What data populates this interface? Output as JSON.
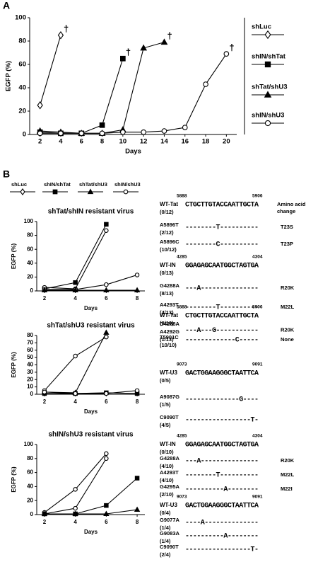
{
  "panel_labels": [
    "A",
    "B"
  ],
  "chart_data": [
    {
      "type": "line",
      "xlabel": "Days",
      "ylabel": "EGFP (%)",
      "x": [
        2,
        4,
        6,
        8,
        10,
        12,
        14,
        16,
        18,
        20
      ],
      "xlim": [
        1,
        21
      ],
      "xticks": [
        2,
        4,
        6,
        8,
        10,
        12,
        14,
        16,
        18,
        20
      ],
      "ylim": [
        0,
        100
      ],
      "yticks": [
        0,
        20,
        40,
        60,
        80,
        100
      ],
      "legend": "right",
      "series": [
        {
          "name": "shLuc",
          "marker": "diamond-open",
          "color": "#000000",
          "end_label": "†",
          "values": [
            25,
            85,
            null,
            null,
            null,
            null,
            null,
            null,
            null,
            null
          ]
        },
        {
          "name": "shIN/shTat",
          "marker": "square-filled",
          "color": "#000000",
          "end_label": "†",
          "values": [
            2,
            1,
            1,
            8,
            65,
            null,
            null,
            null,
            null,
            null
          ]
        },
        {
          "name": "shTat/shU3",
          "marker": "triangle-filled",
          "color": "#000000",
          "end_label": "†",
          "values": [
            3,
            2,
            1,
            1,
            4,
            74,
            79,
            null,
            null,
            null
          ]
        },
        {
          "name": "shIN/shU3",
          "marker": "circle-open",
          "color": "#000000",
          "end_label": "†",
          "values": [
            1,
            1,
            1,
            1,
            2,
            2,
            3,
            6,
            43,
            69
          ]
        }
      ]
    },
    {
      "type": "line",
      "title": "shTat/shIN resistant virus",
      "xlabel": "Days",
      "ylabel": "EGFP (%)",
      "x": [
        2,
        4,
        6,
        8
      ],
      "xlim": [
        1.5,
        8.5
      ],
      "xticks": [
        2,
        4,
        6,
        8
      ],
      "ylim": [
        0,
        100
      ],
      "yticks": [
        0,
        20,
        40,
        60,
        80,
        100
      ],
      "series": [
        {
          "marker": "square-filled",
          "color": "#000000",
          "values": [
            3,
            12,
            96,
            null
          ]
        },
        {
          "marker": "circle-open",
          "color": "#000000",
          "values": [
            5,
            3,
            87,
            null
          ]
        },
        {
          "marker": "circle-open",
          "color": "#000000",
          "values": [
            2,
            2,
            9,
            23
          ]
        },
        {
          "marker": "triangle-filled",
          "color": "#000000",
          "values": [
            1,
            1,
            1,
            1
          ]
        }
      ]
    },
    {
      "type": "line",
      "title": "shTat/shU3 resistant virus",
      "xlabel": "Days",
      "ylabel": "EGFP (%)",
      "x": [
        2,
        4,
        6,
        8
      ],
      "xlim": [
        1.5,
        8.5
      ],
      "xticks": [
        2,
        4,
        6,
        8
      ],
      "ylim": [
        0,
        80
      ],
      "yticks": [
        0,
        10,
        20,
        30,
        40,
        50,
        60,
        70,
        80
      ],
      "series": [
        {
          "marker": "triangle-filled",
          "color": "#000000",
          "values": [
            3,
            2,
            84,
            null
          ]
        },
        {
          "marker": "circle-open",
          "color": "#000000",
          "values": [
            5,
            52,
            78,
            null
          ]
        },
        {
          "marker": "square-filled",
          "color": "#000000",
          "values": [
            1,
            1,
            2,
            1
          ]
        },
        {
          "marker": "circle-open",
          "color": "#000000",
          "values": [
            3,
            1,
            1,
            5
          ]
        }
      ]
    },
    {
      "type": "line",
      "title": "shIN/shU3 resistant virus",
      "xlabel": "Days",
      "ylabel": "EGFP (%)",
      "x": [
        2,
        4,
        6,
        8
      ],
      "xlim": [
        1.5,
        8.5
      ],
      "xticks": [
        2,
        4,
        6,
        8
      ],
      "ylim": [
        0,
        100
      ],
      "yticks": [
        0,
        20,
        40,
        60,
        80,
        100
      ],
      "series": [
        {
          "marker": "circle-open",
          "color": "#000000",
          "values": [
            3,
            36,
            87,
            null
          ]
        },
        {
          "marker": "circle-open",
          "color": "#000000",
          "values": [
            1,
            9,
            80,
            null
          ]
        },
        {
          "marker": "square-filled",
          "color": "#000000",
          "values": [
            1,
            1,
            13,
            52
          ]
        },
        {
          "marker": "triangle-filled",
          "color": "#000000",
          "values": [
            1,
            1,
            1,
            7
          ]
        }
      ]
    }
  ],
  "legend_b": [
    {
      "name": "shLuc",
      "marker": "diamond-open"
    },
    {
      "name": "shIN/shTat",
      "marker": "square-filled"
    },
    {
      "name": "shTat/shU3",
      "marker": "triangle-filled"
    },
    {
      "name": "shIN/shU3",
      "marker": "circle-open"
    }
  ],
  "amino_acid_header": [
    "Amino acid",
    "change"
  ],
  "alignments": [
    [
      {
        "name": "WT-Tat",
        "count": "(0/12)",
        "start": 5888,
        "end": 5906,
        "seq": "CTGCTTGTACCAATTGCTA"
      },
      {
        "label": [
          "A5896T"
        ],
        "count": "(2/12)",
        "seq": "--------T----------",
        "change": "T23S"
      },
      {
        "label": [
          "A5896C"
        ],
        "count": "(10/12)",
        "seq": "--------C----------",
        "change": "T23P"
      },
      {
        "name": "WT-IN",
        "count": "(0/13)",
        "start": 4285,
        "end": 4304,
        "seq": "GGAGAGCAATGGCTAGTGA"
      },
      {
        "label": [
          "G4288A"
        ],
        "count": "(8/13)",
        "seq": "---A---------------",
        "change": "R20K"
      },
      {
        "label": [
          "A4293T"
        ],
        "count": "(4/13)",
        "seq": "--------T----------",
        "change": "M22L"
      },
      {
        "label": [
          "G4288A",
          "A4292G"
        ],
        "count": "(1/13)",
        "seq": "---A---G-----------",
        "change": "R20K"
      }
    ],
    [
      {
        "name": "WT-Tat",
        "count": "(0/10)",
        "start": 5888,
        "end": 5906,
        "seq": "CTGCTTGTACCAATTGCTA"
      },
      {
        "label": [
          "T5901C"
        ],
        "count": "(10/10)",
        "seq": "-------------C-----",
        "change": "None"
      },
      {
        "name": "WT-U3",
        "count": "(0/5)",
        "start": 9073,
        "end": 9091,
        "seq": "GACTGGAAGGGCTAATTCA"
      },
      {
        "label": [
          "A9087G"
        ],
        "count": "(1/5)",
        "seq": "--------------G----"
      },
      {
        "label": [
          "C9090T"
        ],
        "count": "(4/5)",
        "seq": "-----------------T-"
      }
    ],
    [
      {
        "name": "WT-IN",
        "count": "(0/10)",
        "start": 4285,
        "end": 4304,
        "seq": "GGAGAGCAATGGCTAGTGA"
      },
      {
        "label": [
          "G4288A"
        ],
        "count": "(4/10)",
        "seq": "---A---------------",
        "change": "R20K"
      },
      {
        "label": [
          "A4293T"
        ],
        "count": "(4/10)",
        "seq": "--------T----------",
        "change": "M22L"
      },
      {
        "label": [
          "G4295A"
        ],
        "count": "(2/10)",
        "seq": "----------A--------",
        "change": "M22I"
      },
      {
        "name": "WT-U3",
        "count": "(0/4)",
        "start": 9073,
        "end": 9091,
        "seq": "GACTGGAAGGGCTAATTCA"
      },
      {
        "label": [
          "G9077A"
        ],
        "count": "(1/4)",
        "seq": "----A--------------"
      },
      {
        "label": [
          "G9083A"
        ],
        "count": "(1/4)",
        "seq": "----------A--------"
      },
      {
        "label": [
          "C9090T"
        ],
        "count": "(2/4)",
        "seq": "-----------------T-"
      }
    ]
  ]
}
